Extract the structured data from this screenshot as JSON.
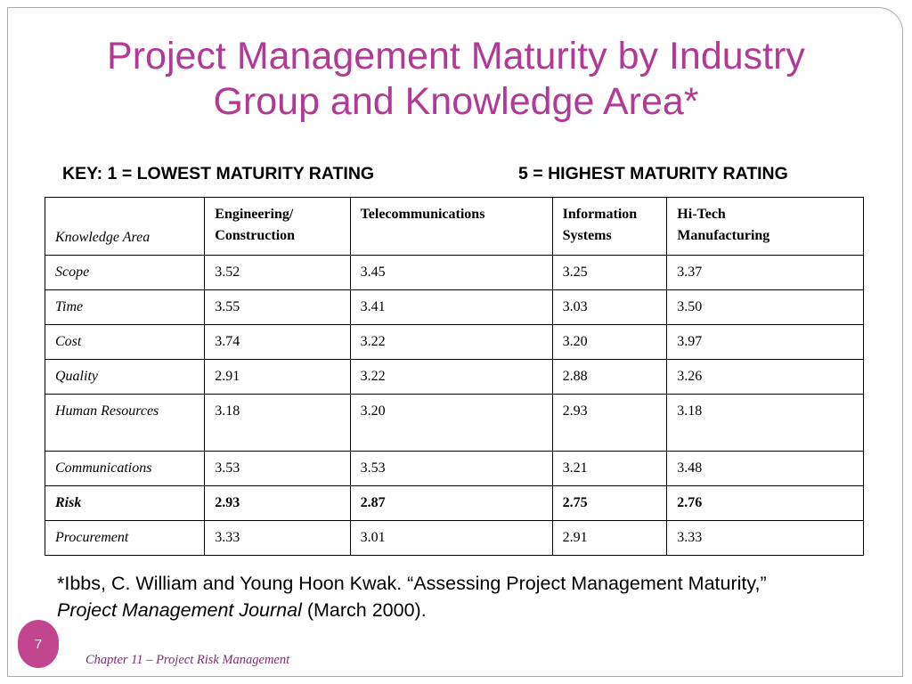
{
  "title": {
    "line1": "Project Management Maturity by Industry",
    "line2": "Group and Knowledge Area*"
  },
  "key": {
    "low": "KEY: 1 = LOWEST MATURITY RATING",
    "high": "5 = HIGHEST MATURITY RATING"
  },
  "table": {
    "headers": [
      "Knowledge Area",
      "Engineering/ Construction",
      "Telecommunications",
      "Information Systems",
      "Hi-Tech Manufacturing"
    ],
    "header_lines": {
      "h1a": "Engineering/",
      "h1b": "Construction",
      "h3a": "Information",
      "h3b": "Systems",
      "h4a": "Hi-Tech",
      "h4b": "Manufacturing"
    },
    "rows": [
      {
        "area": "Scope",
        "values": [
          "3.52",
          "3.45",
          "3.25",
          "3.37"
        ]
      },
      {
        "area": "Time",
        "values": [
          "3.55",
          "3.41",
          "3.03",
          "3.50"
        ]
      },
      {
        "area": "Cost",
        "values": [
          "3.74",
          "3.22",
          "3.20",
          "3.97"
        ]
      },
      {
        "area": "Quality",
        "values": [
          "2.91",
          "3.22",
          "2.88",
          "3.26"
        ]
      },
      {
        "area": "Human Resources",
        "values": [
          "3.18",
          "3.20",
          "2.93",
          "3.18"
        ]
      },
      {
        "area": "Communications",
        "values": [
          "3.53",
          "3.53",
          "3.21",
          "3.48"
        ]
      },
      {
        "area": "Risk",
        "values": [
          "2.93",
          "2.87",
          "2.75",
          "2.76"
        ]
      },
      {
        "area": "Procurement",
        "values": [
          "3.33",
          "3.01",
          "2.91",
          "3.33"
        ]
      }
    ]
  },
  "citation": {
    "line1": "*Ibbs, C. William and Young Hoon Kwak. “Assessing Project Management Maturity,”",
    "journal": "Project Management Journal",
    "rest": " (March 2000)."
  },
  "page_number": "7",
  "footer": "Chapter 11 – Project Risk Management"
}
